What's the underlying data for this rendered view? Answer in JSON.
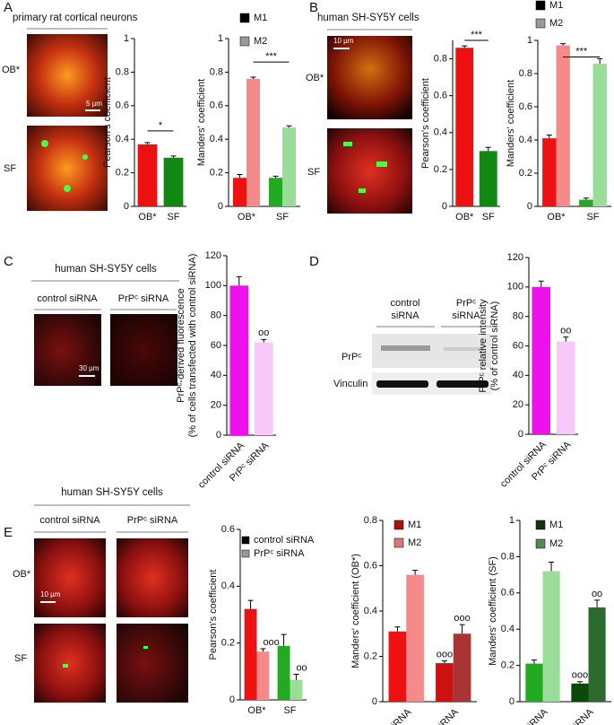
{
  "panels": [
    {
      "letter": "A",
      "title": "primary rat cortical neurons",
      "rows": [
        "OB*",
        "SF"
      ],
      "scale": "5 µm"
    },
    {
      "letter": "B",
      "title": "human SH-SY5Y cells",
      "rows": [
        "OB*",
        "SF"
      ],
      "scale": "10 µm"
    },
    {
      "letter": "C",
      "title": "human SH-SY5Y cells",
      "columns": [
        "control siRNA",
        "PrPᶜ siRNA"
      ],
      "scale": "30 µm"
    },
    {
      "letter": "D",
      "columns": [
        [
          "control",
          "siRNA"
        ],
        [
          "PrPᶜ",
          "siRNA"
        ]
      ],
      "rows": [
        "PrPᶜ",
        "Vinculin"
      ]
    },
    {
      "letter": "E",
      "title": "human SH-SY5Y cells",
      "columns": [
        "control siRNA",
        "PrPᶜ siRNA"
      ],
      "rows": [
        "OB*",
        "SF"
      ],
      "scale": "10 µm"
    }
  ],
  "chart_data": [
    {
      "type": "bar",
      "ylabel": [
        "Pearson's coefficient"
      ],
      "categories": [
        "OB*",
        "SF"
      ],
      "ylim": [
        0,
        1
      ],
      "yticks": [
        0,
        0.2,
        0.4,
        0.6,
        0.8,
        1
      ],
      "annotations": [
        "*"
      ],
      "series": [
        {
          "colors": [
            "#ee1111",
            "#118811"
          ],
          "values": [
            0.37,
            0.29
          ],
          "errors": [
            0.01,
            0.01
          ]
        }
      ]
    },
    {
      "type": "bar",
      "ylabel": [
        "Manders' coefficient"
      ],
      "categories": [
        "OB*",
        "SF"
      ],
      "ylim": [
        0,
        1
      ],
      "yticks": [
        0,
        0.2,
        0.4,
        0.6,
        0.8,
        1
      ],
      "annotations": [
        "***"
      ],
      "series": [
        {
          "name": "M1",
          "color": "#000000",
          "colors": [
            "#ee1111",
            "#22aa22"
          ],
          "values": [
            0.17,
            0.17
          ],
          "errors": [
            0.02,
            0.01
          ]
        },
        {
          "name": "M2",
          "color": "#999999",
          "colors": [
            "#f48a8a",
            "#99dd99"
          ],
          "values": [
            0.76,
            0.47
          ],
          "errors": [
            0.01,
            0.01
          ]
        }
      ]
    },
    {
      "type": "bar",
      "ylabel": [
        "Pearson's coefficient"
      ],
      "categories": [
        "OB*",
        "SF"
      ],
      "ylim": [
        0,
        0.9
      ],
      "yticks": [
        0,
        0.2,
        0.4,
        0.6,
        0.8
      ],
      "annotations": [
        "***"
      ],
      "series": [
        {
          "colors": [
            "#ee1111",
            "#118811"
          ],
          "values": [
            0.86,
            0.3
          ],
          "errors": [
            0.01,
            0.02
          ]
        }
      ]
    },
    {
      "type": "bar",
      "ylabel": [
        "Manders' coefficient"
      ],
      "categories": [
        "OB*",
        "SF"
      ],
      "ylim": [
        0,
        1
      ],
      "yticks": [
        0,
        0.2,
        0.4,
        0.6,
        0.8,
        1
      ],
      "annotations": [
        "***"
      ],
      "series": [
        {
          "name": "M1",
          "color": "#000000",
          "colors": [
            "#ee1111",
            "#22aa22"
          ],
          "values": [
            0.41,
            0.04
          ],
          "errors": [
            0.02,
            0.01
          ]
        },
        {
          "name": "M2",
          "color": "#999999",
          "colors": [
            "#f48a8a",
            "#99dd99"
          ],
          "values": [
            0.97,
            0.86
          ],
          "errors": [
            0.01,
            0.03
          ]
        }
      ]
    },
    {
      "type": "bar",
      "ylabel": [
        "PrPᶜ-derived fluorescence",
        "(% of cells transfected with control siRNA)"
      ],
      "categories": [
        "control siRNA",
        "PrPᶜ siRNA"
      ],
      "ylim": [
        0,
        120
      ],
      "yticks": [
        0,
        20,
        40,
        60,
        80,
        100,
        120
      ],
      "series": [
        {
          "colors": [
            "#ee11ee",
            "#f8c8f8"
          ],
          "values": [
            100,
            62
          ],
          "errors": [
            6,
            2
          ],
          "sig": [
            null,
            "oo"
          ]
        }
      ]
    },
    {
      "type": "bar",
      "ylabel": [
        "PrPᶜ relative intensity",
        "(% of control siRNA)"
      ],
      "categories": [
        "control siRNA",
        "PrPᶜ siRNA"
      ],
      "ylim": [
        0,
        120
      ],
      "yticks": [
        0,
        20,
        40,
        60,
        80,
        100,
        120
      ],
      "series": [
        {
          "colors": [
            "#ee11ee",
            "#f8c8f8"
          ],
          "values": [
            100,
            63
          ],
          "errors": [
            4,
            3
          ],
          "sig": [
            null,
            "oo"
          ]
        }
      ]
    },
    {
      "type": "bar",
      "ylabel": [
        "Pearson's coefficient"
      ],
      "categories": [
        "OB*",
        "SF"
      ],
      "ylim": [
        0,
        0.6
      ],
      "yticks": [
        0,
        0.2,
        0.4,
        0.6
      ],
      "series": [
        {
          "name": "control siRNA",
          "color": "#000000",
          "colors": [
            "#ee1111",
            "#22aa22"
          ],
          "values": [
            0.32,
            0.19
          ],
          "errors": [
            0.03,
            0.04
          ]
        },
        {
          "name": "PrPᶜ siRNA",
          "color": "#999999",
          "colors": [
            "#f48a8a",
            "#99dd99"
          ],
          "values": [
            0.17,
            0.07
          ],
          "errors": [
            0.01,
            0.02
          ],
          "sig": [
            "ooo",
            "oo"
          ]
        }
      ]
    },
    {
      "type": "bar",
      "ylabel": [
        "Manders' coefficient (OB*)"
      ],
      "categories": [
        "control siRNA",
        "PrPᶜ siRNA"
      ],
      "ylim": [
        0,
        0.8
      ],
      "yticks": [
        0,
        0.2,
        0.4,
        0.6,
        0.8
      ],
      "series": [
        {
          "name": "M1",
          "color": "#aa1111",
          "colors": [
            "#ee1111",
            "#cc1111"
          ],
          "values": [
            0.31,
            0.17
          ],
          "errors": [
            0.02,
            0.01
          ],
          "sig": [
            null,
            "ooo"
          ]
        },
        {
          "name": "M2",
          "color": "#dd7777",
          "colors": [
            "#f48a8a",
            "#aa3333"
          ],
          "values": [
            0.56,
            0.3
          ],
          "errors": [
            0.02,
            0.04
          ],
          "sig": [
            null,
            "ooo"
          ]
        }
      ]
    },
    {
      "type": "bar",
      "ylabel": [
        "Manders' coefficient (SF)"
      ],
      "categories": [
        "control siRNA",
        "PrPᶜ siRNA"
      ],
      "ylim": [
        0,
        1
      ],
      "yticks": [
        0,
        0.2,
        0.4,
        0.6,
        0.8,
        1
      ],
      "series": [
        {
          "name": "M1",
          "color": "#113311",
          "colors": [
            "#22aa22",
            "#0a4a0a"
          ],
          "values": [
            0.21,
            0.1
          ],
          "errors": [
            0.02,
            0.01
          ],
          "sig": [
            null,
            "ooo"
          ]
        },
        {
          "name": "M2",
          "color": "#558855",
          "colors": [
            "#99dd99",
            "#2d6a2d"
          ],
          "values": [
            0.72,
            0.52
          ],
          "errors": [
            0.05,
            0.04
          ],
          "sig": [
            null,
            "oo"
          ]
        }
      ]
    }
  ]
}
